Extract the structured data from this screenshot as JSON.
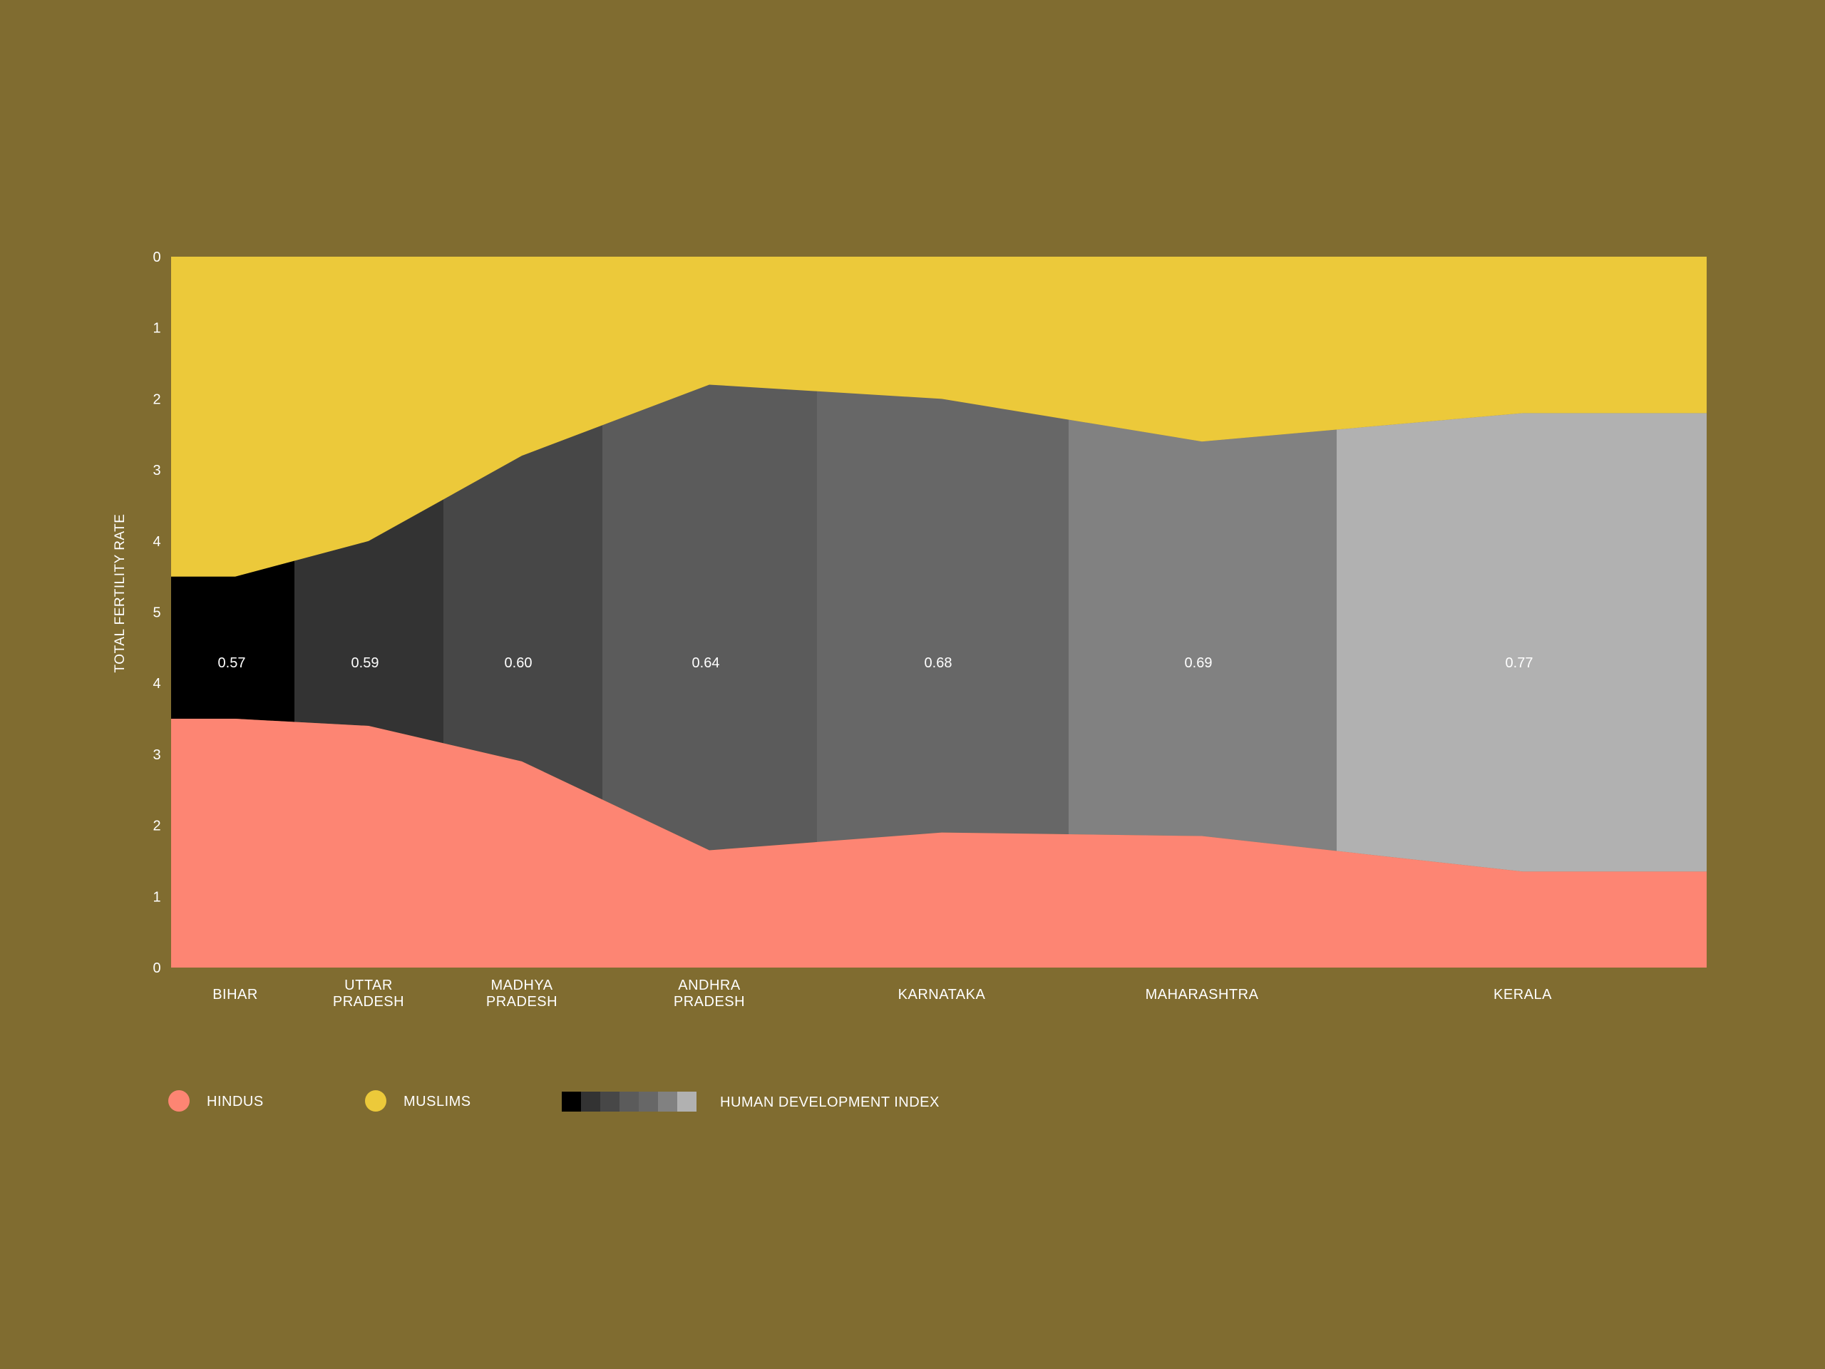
{
  "chart_data": {
    "type": "area",
    "ylabel": "TOTAL FERTILITY RATE",
    "y_tick_labels_top": [
      "0",
      "1",
      "2",
      "3",
      "4",
      "5"
    ],
    "y_tick_labels_bottom": [
      "4",
      "3",
      "2",
      "1",
      "0"
    ],
    "states": [
      {
        "name": [
          "BIHAR"
        ],
        "hdi": "0.57",
        "shade": "#000000"
      },
      {
        "name": [
          "UTTAR",
          "PRADESH"
        ],
        "hdi": "0.59",
        "shade": "#333333"
      },
      {
        "name": [
          "MADHYA",
          "PRADESH"
        ],
        "hdi": "0.60",
        "shade": "#474747"
      },
      {
        "name": [
          "ANDHRA",
          "PRADESH"
        ],
        "hdi": "0.64",
        "shade": "#5b5b5b"
      },
      {
        "name": [
          "KARNATAKA"
        ],
        "hdi": "0.68",
        "shade": "#676767"
      },
      {
        "name": [
          "MAHARASHTRA"
        ],
        "hdi": "0.69",
        "shade": "#818181"
      },
      {
        "name": [
          "KERALA"
        ],
        "hdi": "0.77",
        "shade": "#b1b1b1"
      }
    ],
    "series": [
      {
        "name": "MUSLIMS",
        "color": "#ecc93a",
        "values": [
          4.5,
          4.0,
          2.8,
          1.8,
          2.0,
          2.6,
          2.2
        ]
      },
      {
        "name": "HINDUS",
        "color": "#fd8573",
        "values": [
          3.5,
          3.4,
          2.9,
          1.65,
          1.9,
          1.85,
          1.35
        ]
      }
    ],
    "muslims_axis": "0 at top, increasing downward",
    "hindus_axis": "0 at bottom, increasing upward",
    "legend_placement": "bottom-left",
    "grid": false,
    "background_color": "#806c30"
  },
  "legend": {
    "hindus_label": "HINDUS",
    "muslims_label": "MUSLIMS",
    "hdi_label": "HUMAN DEVELOPMENT INDEX",
    "hindus_color": "#fd8573",
    "muslims_color": "#ecc93a",
    "hdi_shades": [
      "#000000",
      "#333333",
      "#474747",
      "#5b5b5b",
      "#676767",
      "#818181",
      "#b1b1b1"
    ]
  }
}
